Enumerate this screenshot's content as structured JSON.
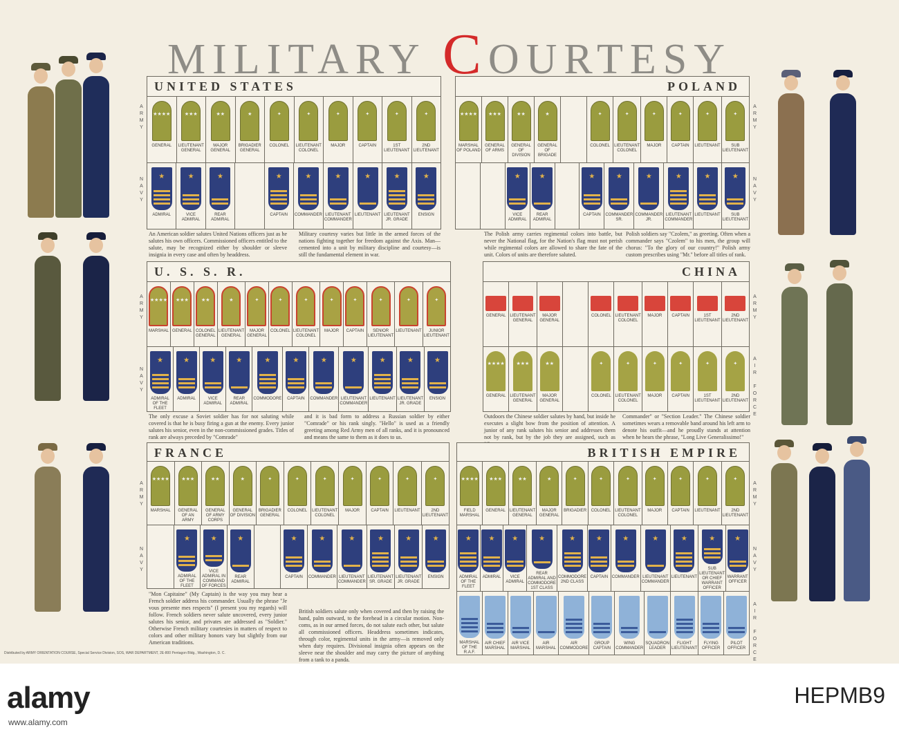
{
  "title": {
    "pre": "MILITARY ",
    "big_c": "C",
    "post": "OURTESY"
  },
  "labels": {
    "army": "A\nR\nM\nY",
    "navy": "N\nA\nV\nY",
    "air_force": "A\nI\nR\n\nF\nO\nR\nC\nE"
  },
  "colors": {
    "army": "#9a9c3f",
    "navy": "#2e3f7d",
    "raf": "#8fb2d8",
    "accent": "#d42a2a"
  },
  "us": {
    "title": "UNITED STATES",
    "army": [
      "GENERAL",
      "LIEUTENANT GENERAL",
      "MAJOR GENERAL",
      "BRIGADIER GENERAL",
      "COLONEL",
      "LIEUTENANT COLONEL",
      "MAJOR",
      "CAPTAIN",
      "1ST LIEUTENANT",
      "2ND LIEUTENANT"
    ],
    "navy": [
      "ADMIRAL",
      "VICE ADMIRAL",
      "REAR ADMIRAL",
      "",
      "CAPTAIN",
      "COMMANDER",
      "LIEUTENANT COMMANDER",
      "LIEUTENANT",
      "LIEUTENANT JR. GRADE",
      "ENSIGN"
    ],
    "blurb1": "An American soldier salutes United Nations officers just as he salutes his own officers. Commissioned officers entitled to the salute, may be recognized either by shoulder or sleeve insignia in every case and often by headdress.",
    "blurb2": "Military courtesy varies but little in the armed forces of the nations fighting together for freedom against the Axis. Man—cemented into a unit by military discipline and courtesy—is still the fundamental element in war."
  },
  "poland": {
    "title": "POLAND",
    "army": [
      "MARSHAL OF POLAND",
      "GENERAL OF ARMS",
      "GENERAL OF DIVISION",
      "GENERAL OF BRIGADE",
      "",
      "COLONEL",
      "LIEUTENANT COLONEL",
      "MAJOR",
      "CAPTAIN",
      "LIEUTENANT",
      "SUB LIEUTENANT"
    ],
    "navy": [
      "",
      "",
      "VICE ADMIRAL",
      "REAR ADMIRAL",
      "",
      "CAPTAIN",
      "COMMANDER SR.",
      "COMMANDER JR.",
      "LIEUTENANT COMMANDER",
      "LIEUTENANT",
      "SUB LIEUTENANT"
    ],
    "blurb1": "The Polish army carries regimental colors into battle, but never the National flag, for the Nation's flag must not perish while regimental colors are allowed to share the fate of the unit. Colors of units are therefore saluted.",
    "blurb2": "Polish soldiers say \"Czolem,\" as greeting. Often when a commander says \"Czolem\" to his men, the group will chorus: \"To the glory of our country!\" Polish army custom prescribes using \"Mr.\" before all titles of rank."
  },
  "ussr": {
    "title": "U. S. S. R.",
    "army": [
      "MARSHAL",
      "GENERAL",
      "COLONEL GENERAL",
      "LIEUTENANT GENERAL",
      "MAJOR GENERAL",
      "COLONEL",
      "LIEUTENANT COLONEL",
      "MAJOR",
      "CAPTAIN",
      "SENIOR LIEUTENANT",
      "LIEUTENANT",
      "JUNIOR LIEUTENANT"
    ],
    "navy": [
      "ADMIRAL OF THE FLEET",
      "ADMIRAL",
      "VICE ADMIRAL",
      "REAR ADMIRAL",
      "COMMODORE",
      "CAPTAIN",
      "COMMANDER",
      "LIEUTENANT COMMANDER",
      "LIEUTENANT",
      "LIEUTENANT JR. GRADE",
      "ENSIGN"
    ],
    "blurb1": "The only excuse a Soviet soldier has for not saluting while covered is that he is busy firing a gun at the enemy. Every junior salutes his senior, even in the non-commissioned grades. Titles of rank are always preceded by \"Comrade\"",
    "blurb2": "and it is bad form to address a Russian soldier by either \"Comrade\" or his rank singly. \"Hello\" is used as a friendly greeting among Red Army men of all ranks, and it is pronounced and means the same to them as it does to us."
  },
  "china": {
    "title": "CHINA",
    "army": [
      "GENERAL",
      "LIEUTENANT GENERAL",
      "MAJOR GENERAL",
      "",
      "COLONEL",
      "LIEUTENANT COLONEL",
      "MAJOR",
      "CAPTAIN",
      "1ST LIEUTENANT",
      "2ND LIEUTENANT"
    ],
    "air": [
      "GENERAL",
      "LIEUTENANT GENERAL",
      "MAJOR GENERAL",
      "",
      "COLONEL",
      "LIEUTENANT COLONEL",
      "MAJOR",
      "CAPTAIN",
      "1ST LIEUTENANT",
      "2ND LIEUTENANT"
    ],
    "blurb1": "Outdoors the Chinese soldier salutes by hand, but inside he executes a slight bow from the position of attention. A junior of any rank salutes his senior and addresses them not by rank, but by the job they are assigned, such as \"Company",
    "blurb2": "Commander\" or \"Section Leader.\" The Chinese soldier sometimes wears a removable band around his left arm to denote his outfit—and he proudly stands at attention when he hears the phrase, \"Long Live Generalissimo!\""
  },
  "france": {
    "title": "FRANCE",
    "army": [
      "MARSHAL",
      "GENERAL OF AN ARMY",
      "GENERAL OF ARMY CORPS",
      "GENERAL OF DIVISION",
      "BRIGADIER GENERAL",
      "COLONEL",
      "LIEUTENANT COLONEL",
      "MAJOR",
      "CAPTAIN",
      "LIEUTENANT",
      "2ND LIEUTENANT"
    ],
    "navy": [
      "",
      "ADMIRAL OF THE FLEET",
      "VICE ADMIRAL IN COMMAND OF FORCES",
      "REAR ADMIRAL",
      "",
      "CAPTAIN",
      "COMMANDER",
      "LIEUTENANT COMMANDER",
      "LIEUTENANT SR. GRADE",
      "LIEUTENANT JR. GRADE",
      "ENSIGN"
    ],
    "blurb": "\"Mon Capitaine\" (My Captain) is the way you may hear a French soldier address his commander. Usually the phrase \"Je vous presente mes respects\" (I present you my regards) will follow. French soldiers never salute uncovered, every junior salutes his senior, and privates are addressed as \"Soldier.\" Otherwise French military courtesies in matters of respect to colors and other military honors vary but slightly from our American traditions."
  },
  "british": {
    "title": "BRITISH EMPIRE",
    "army": [
      "FIELD MARSHAL",
      "GENERAL",
      "LIEUTENANT GENERAL",
      "MAJOR GENERAL",
      "BRIGADIER",
      "COLONEL",
      "LIEUTENANT COLONEL",
      "MAJOR",
      "CAPTAIN",
      "LIEUTENANT",
      "2ND LIEUTENANT"
    ],
    "navy": [
      "ADMIRAL OF THE FLEET",
      "ADMIRAL",
      "VICE ADMIRAL",
      "REAR ADMIRAL AND COMMODORE 1ST CLASS",
      "COMMODORE 2ND CLASS",
      "CAPTAIN",
      "COMMANDER",
      "LIEUTENANT COMMANDER",
      "LIEUTENANT",
      "SUB LIEUTENANT OR CHIEF WARRANT OFFICER",
      "WARRANT OFFICER"
    ],
    "air": [
      "MARSHAL OF THE R.A.F.",
      "AIR CHIEF MARSHAL",
      "AIR VICE MARSHAL",
      "AIR MARSHAL",
      "AIR COMMODORE",
      "GROUP CAPTAIN",
      "WING COMMANDER",
      "SQUADRON LEADER",
      "FLIGHT LIEUTENANT",
      "FLYING OFFICER",
      "PILOT OFFICER"
    ],
    "blurb": "British soldiers salute only when covered and then by raising the hand, palm outward, to the forehead in a circular motion. Non-coms, as in our armed forces, do not salute each other, but salute all commissioned officers. Headdress sometimes indicates, through color, regimental units in the army—is removed only when duty requires. Divisional insignia often appears on the sleeve near the shoulder and may carry the picture of anything from a tank to a panda."
  },
  "footer": "Distributed by ARMY ORIENTATION COURSE, Special Service Division, SOS, WAR DEPARTMENT, 2E-800 Pentagon Bldg., Washington, D. C.",
  "stock": {
    "logo": "alamy",
    "id": "HEPMB9",
    "url": "www.alamy.com"
  }
}
